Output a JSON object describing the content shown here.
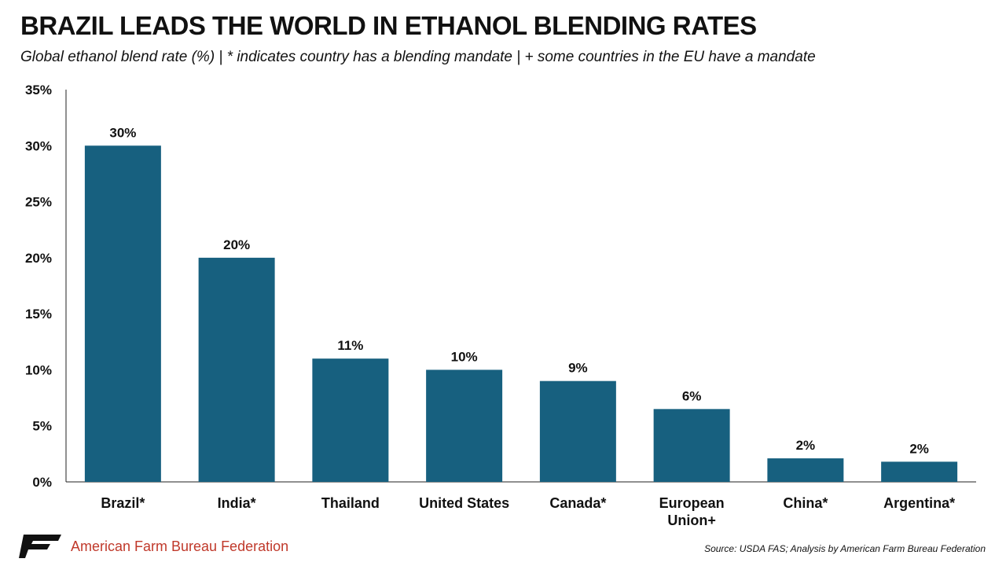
{
  "chart_data": {
    "type": "bar",
    "title": "BRAZIL LEADS THE WORLD IN ETHANOL BLENDING RATES",
    "subtitle": "Global ethanol blend rate (%) | * indicates country has a blending mandate | + some countries in the EU have a mandate",
    "categories": [
      "Brazil*",
      "India*",
      "Thailand",
      "United States",
      "Canada*",
      "European Union+",
      "China*",
      "Argentina*"
    ],
    "category_lines": [
      [
        "Brazil*"
      ],
      [
        "India*"
      ],
      [
        "Thailand"
      ],
      [
        "United States"
      ],
      [
        "Canada*"
      ],
      [
        "European",
        "Union+"
      ],
      [
        "China*"
      ],
      [
        "Argentina*"
      ]
    ],
    "values": [
      30,
      20,
      11,
      10,
      9,
      6.5,
      2.1,
      1.8
    ],
    "data_labels": [
      "30%",
      "20%",
      "11%",
      "10%",
      "9%",
      "6%",
      "2%",
      "2%"
    ],
    "ylim": [
      0,
      35
    ],
    "yticks": [
      0,
      5,
      10,
      15,
      20,
      25,
      30,
      35
    ],
    "ytick_labels": [
      "0%",
      "5%",
      "10%",
      "15%",
      "20%",
      "25%",
      "30%",
      "35%"
    ],
    "xlabel": "",
    "ylabel": "",
    "grid": false,
    "bar_color": "#17607f"
  },
  "footer": {
    "brand": "American Farm Bureau Federation",
    "logo_text": "FB",
    "source": "Source: USDA FAS; Analysis by American Farm Bureau Federation"
  },
  "colors": {
    "bar": "#17607f",
    "brand_red": "#c0392b",
    "text": "#111111"
  }
}
